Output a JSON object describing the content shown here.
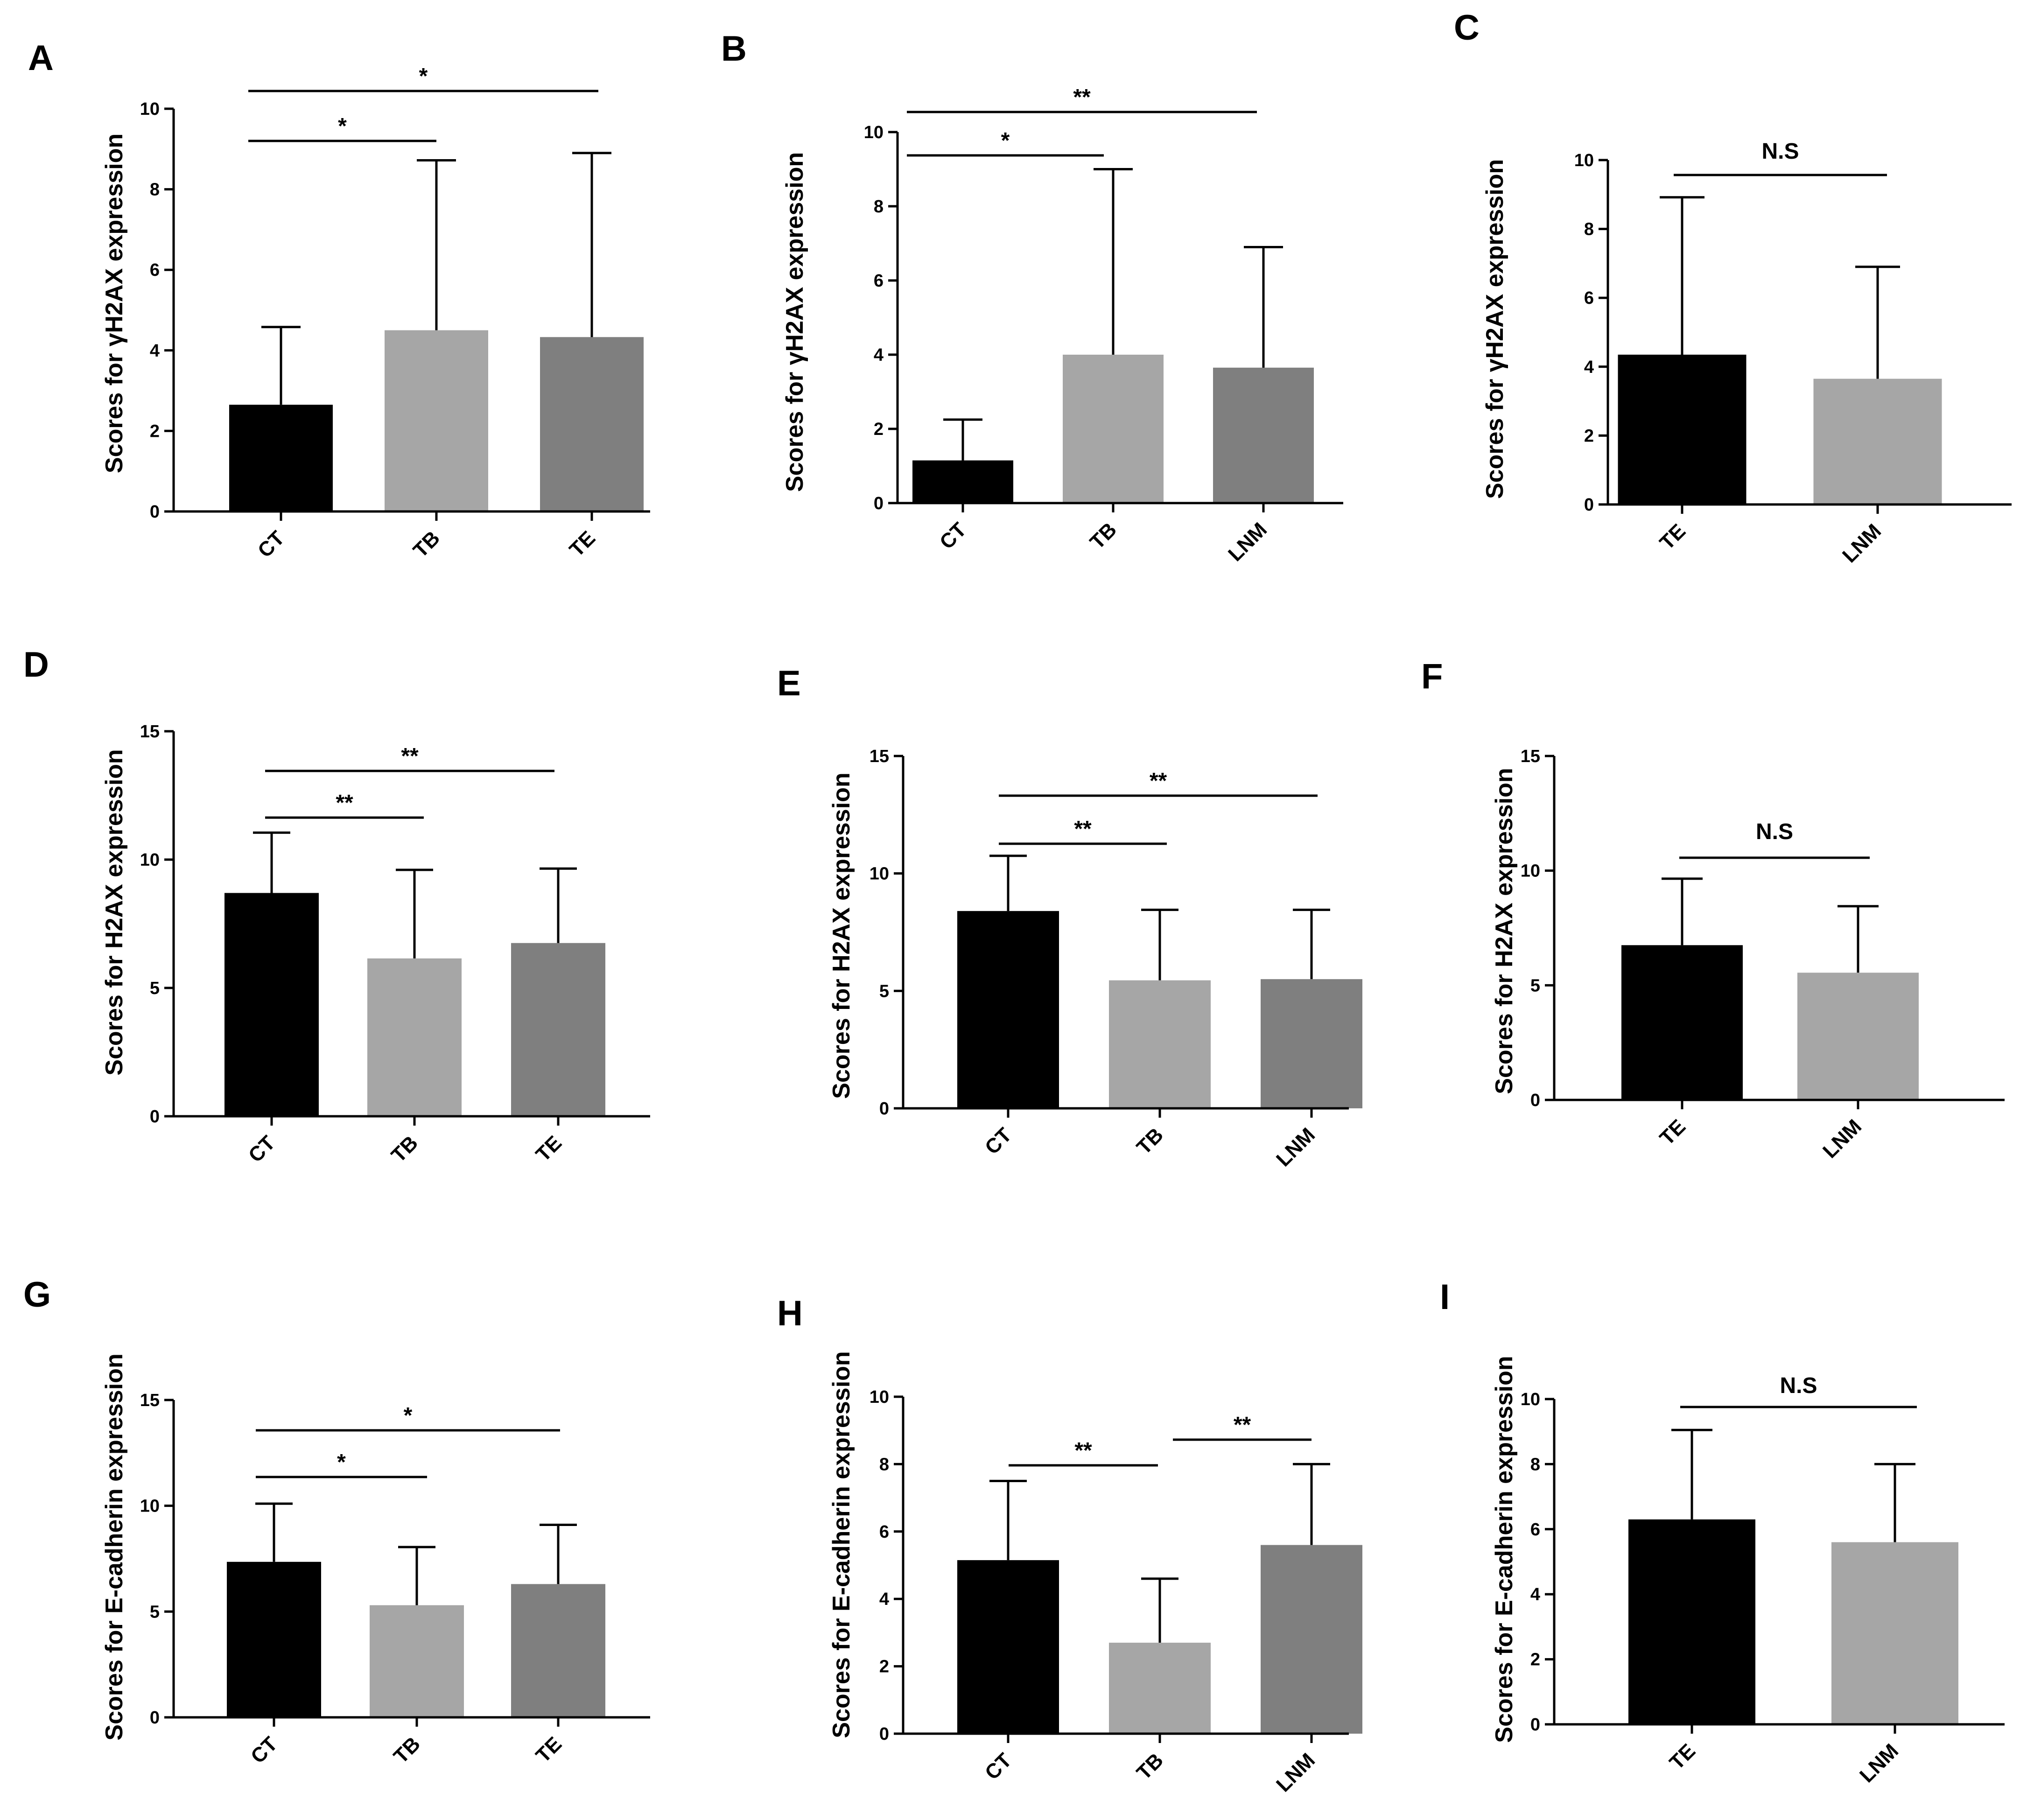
{
  "chart_data": [
    {
      "panel": "A",
      "type": "bar",
      "ylabel": "Scores for γH2AX expression",
      "categories": [
        "CT",
        "TB",
        "TE"
      ],
      "values": [
        2.65,
        4.5,
        4.33
      ],
      "errors": [
        1.93,
        4.22,
        4.57
      ],
      "ylim": [
        0,
        10
      ],
      "yticks": [
        0,
        2,
        4,
        6,
        8,
        10
      ],
      "colors": [
        "#000000",
        "#a6a6a6",
        "#7f7f7f"
      ],
      "significance": [
        {
          "from": 0,
          "to": 1,
          "label": "*"
        },
        {
          "from": 0,
          "to": 2,
          "label": "*"
        }
      ]
    },
    {
      "panel": "B",
      "type": "bar",
      "ylabel": "Scores for γH2AX expression",
      "categories": [
        "CT",
        "TB",
        "LNM"
      ],
      "values": [
        1.15,
        4.0,
        3.65
      ],
      "errors": [
        1.1,
        5.0,
        3.25
      ],
      "ylim": [
        0,
        10
      ],
      "yticks": [
        0,
        2,
        4,
        6,
        8,
        10
      ],
      "colors": [
        "#000000",
        "#a6a6a6",
        "#7f7f7f"
      ],
      "significance": [
        {
          "from": 0,
          "to": 1,
          "label": "*"
        },
        {
          "from": 0,
          "to": 2,
          "label": "**"
        }
      ]
    },
    {
      "panel": "C",
      "type": "bar",
      "ylabel": "Scores for γH2AX expression",
      "categories": [
        "TE",
        "LNM"
      ],
      "values": [
        4.35,
        3.65
      ],
      "errors": [
        4.57,
        3.25
      ],
      "ylim": [
        0,
        10
      ],
      "yticks": [
        0,
        2,
        4,
        6,
        8,
        10
      ],
      "colors": [
        "#000000",
        "#a6a6a6"
      ],
      "significance": [
        {
          "from": 0,
          "to": 1,
          "label": "N.S"
        }
      ]
    },
    {
      "panel": "D",
      "type": "bar",
      "ylabel": "Scores for H2AX expression",
      "categories": [
        "CT",
        "TB",
        "TE"
      ],
      "values": [
        8.7,
        6.15,
        6.75
      ],
      "errors": [
        2.35,
        3.45,
        2.9
      ],
      "ylim": [
        0,
        15
      ],
      "yticks": [
        0,
        5,
        10,
        15
      ],
      "colors": [
        "#000000",
        "#a6a6a6",
        "#7f7f7f"
      ],
      "significance": [
        {
          "from": 0,
          "to": 1,
          "label": "**"
        },
        {
          "from": 0,
          "to": 2,
          "label": "**"
        }
      ]
    },
    {
      "panel": "E",
      "type": "bar",
      "ylabel": "Scores for H2AX expression",
      "categories": [
        "CT",
        "TB",
        "LNM"
      ],
      "values": [
        8.4,
        5.45,
        5.5
      ],
      "errors": [
        2.35,
        3.0,
        2.95
      ],
      "ylim": [
        0,
        15
      ],
      "yticks": [
        0,
        5,
        10,
        15
      ],
      "colors": [
        "#000000",
        "#a6a6a6",
        "#7f7f7f"
      ],
      "significance": [
        {
          "from": 0,
          "to": 1,
          "label": "**"
        },
        {
          "from": 0,
          "to": 2,
          "label": "**"
        }
      ]
    },
    {
      "panel": "F",
      "type": "bar",
      "ylabel": "Scores for H2AX expression",
      "categories": [
        "TE",
        "LNM"
      ],
      "values": [
        6.75,
        5.55
      ],
      "errors": [
        2.9,
        2.9
      ],
      "ylim": [
        0,
        15
      ],
      "yticks": [
        0,
        5,
        10,
        15
      ],
      "colors": [
        "#000000",
        "#a6a6a6"
      ],
      "significance": [
        {
          "from": 0,
          "to": 1,
          "label": "N.S"
        }
      ]
    },
    {
      "panel": "G",
      "type": "bar",
      "ylabel": "Scores for E-cadherin expression",
      "categories": [
        "CT",
        "TB",
        "TE"
      ],
      "values": [
        7.35,
        5.3,
        6.3
      ],
      "errors": [
        2.75,
        2.75,
        2.8
      ],
      "ylim": [
        0,
        15
      ],
      "yticks": [
        0,
        5,
        10,
        15
      ],
      "colors": [
        "#000000",
        "#a6a6a6",
        "#7f7f7f"
      ],
      "significance": [
        {
          "from": 0,
          "to": 1,
          "label": "*"
        },
        {
          "from": 0,
          "to": 2,
          "label": "*"
        }
      ]
    },
    {
      "panel": "H",
      "type": "bar",
      "ylabel": "Scores for E-cadherin expression",
      "categories": [
        "CT",
        "TB",
        "LNM"
      ],
      "values": [
        5.15,
        2.7,
        5.6
      ],
      "errors": [
        2.35,
        1.9,
        2.4
      ],
      "ylim": [
        0,
        10
      ],
      "yticks": [
        0,
        2,
        4,
        6,
        8,
        10
      ],
      "colors": [
        "#000000",
        "#a6a6a6",
        "#7f7f7f"
      ],
      "significance": [
        {
          "from": 0,
          "to": 1,
          "label": "**"
        },
        {
          "from": 1,
          "to": 2,
          "label": "**"
        }
      ]
    },
    {
      "panel": "I",
      "type": "bar",
      "ylabel": "Scores for E-cadherin expression",
      "categories": [
        "TE",
        "LNM"
      ],
      "values": [
        6.3,
        5.6
      ],
      "errors": [
        2.75,
        2.4
      ],
      "ylim": [
        0,
        10
      ],
      "yticks": [
        0,
        2,
        4,
        6,
        8,
        10
      ],
      "colors": [
        "#000000",
        "#a6a6a6"
      ],
      "significance": [
        {
          "from": 0,
          "to": 1,
          "label": "N.S"
        }
      ]
    }
  ]
}
